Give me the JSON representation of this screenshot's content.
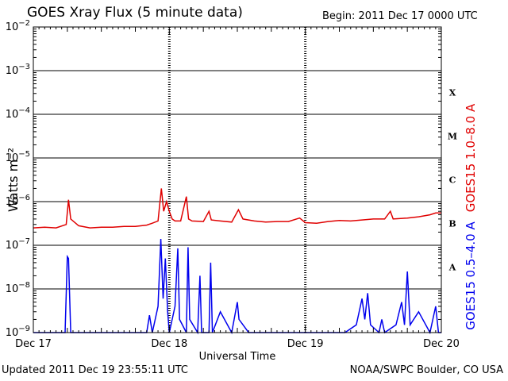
{
  "header": {
    "title": "GOES Xray Flux (5 minute data)",
    "begin": "Begin:  2011 Dec 17 0000 UTC"
  },
  "footer": {
    "updated": "Updated 2011 Dec 19 23:55:11 UTC",
    "credit": "NOAA/SWPC Boulder, CO USA"
  },
  "chart_data": {
    "type": "line",
    "title": "GOES Xray Flux (5 minute data)",
    "xlabel": "Universal Time",
    "ylabel": "Watts m⁻²",
    "yscale": "log",
    "ylim": [
      1e-09,
      0.01
    ],
    "xlim_hours": [
      0,
      72
    ],
    "x_tick_labels": [
      "Dec 17",
      "Dec 18",
      "Dec 19",
      "Dec 20"
    ],
    "x_tick_hours": [
      0,
      24,
      48,
      72
    ],
    "y_tick_values": [
      1e-09,
      1e-08,
      1e-07,
      1e-06,
      1e-05,
      0.0001,
      0.001,
      0.01
    ],
    "flare_classes": [
      {
        "label": "X",
        "logmid": -3.5
      },
      {
        "label": "M",
        "logmid": -4.5
      },
      {
        "label": "C",
        "logmid": -5.5
      },
      {
        "label": "B",
        "logmid": -6.5
      },
      {
        "label": "A",
        "logmid": -7.5
      }
    ],
    "grid": true,
    "series": [
      {
        "name": "GOES15 1.0–8.0 A",
        "color": "#e00000",
        "points": [
          [
            0,
            2.5e-07
          ],
          [
            2,
            2.6e-07
          ],
          [
            4,
            2.5e-07
          ],
          [
            5.8,
            3e-07
          ],
          [
            6.2,
            1.1e-06
          ],
          [
            6.6,
            4e-07
          ],
          [
            8,
            2.8e-07
          ],
          [
            10,
            2.5e-07
          ],
          [
            12,
            2.6e-07
          ],
          [
            14,
            2.6e-07
          ],
          [
            16,
            2.7e-07
          ],
          [
            18,
            2.7e-07
          ],
          [
            20,
            2.9e-07
          ],
          [
            21,
            3.2e-07
          ],
          [
            22,
            3.6e-07
          ],
          [
            22.6,
            2e-06
          ],
          [
            23.0,
            6e-07
          ],
          [
            23.5,
            1e-06
          ],
          [
            24,
            6e-07
          ],
          [
            24.5,
            4e-07
          ],
          [
            25,
            3.6e-07
          ],
          [
            26,
            3.6e-07
          ],
          [
            27,
            1.3e-06
          ],
          [
            27.4,
            4e-07
          ],
          [
            28,
            3.6e-07
          ],
          [
            30,
            3.5e-07
          ],
          [
            31,
            6e-07
          ],
          [
            31.4,
            3.8e-07
          ],
          [
            33,
            3.6e-07
          ],
          [
            35,
            3.4e-07
          ],
          [
            36.2,
            6.5e-07
          ],
          [
            37,
            4e-07
          ],
          [
            39,
            3.6e-07
          ],
          [
            41,
            3.4e-07
          ],
          [
            43,
            3.5e-07
          ],
          [
            45,
            3.5e-07
          ],
          [
            47,
            4.2e-07
          ],
          [
            48,
            3.3e-07
          ],
          [
            50,
            3.2e-07
          ],
          [
            52,
            3.5e-07
          ],
          [
            54,
            3.7e-07
          ],
          [
            56,
            3.6e-07
          ],
          [
            58,
            3.8e-07
          ],
          [
            60,
            4e-07
          ],
          [
            62,
            4e-07
          ],
          [
            63,
            6e-07
          ],
          [
            63.5,
            4e-07
          ],
          [
            66,
            4.2e-07
          ],
          [
            68,
            4.5e-07
          ],
          [
            70,
            5e-07
          ],
          [
            71,
            5.5e-07
          ],
          [
            72,
            5.5e-07
          ]
        ]
      },
      {
        "name": "GOES15 0.5–4.0 A",
        "color": "#0000ee",
        "points": [
          [
            0,
            1e-09
          ],
          [
            5.6,
            1e-09
          ],
          [
            6.0,
            5.5e-08
          ],
          [
            6.2,
            5e-08
          ],
          [
            6.6,
            1e-09
          ],
          [
            12,
            1e-09
          ],
          [
            20,
            1e-09
          ],
          [
            20.5,
            2.5e-09
          ],
          [
            21,
            1e-09
          ],
          [
            22,
            4e-09
          ],
          [
            22.5,
            1.4e-07
          ],
          [
            22.9,
            6e-09
          ],
          [
            23.3,
            5e-08
          ],
          [
            23.7,
            3e-09
          ],
          [
            24,
            1e-09
          ],
          [
            25,
            4e-09
          ],
          [
            25.5,
            8.5e-08
          ],
          [
            25.8,
            2e-09
          ],
          [
            27,
            1e-09
          ],
          [
            27.3,
            9e-08
          ],
          [
            27.6,
            2e-09
          ],
          [
            29,
            1e-09
          ],
          [
            29.4,
            2e-08
          ],
          [
            29.7,
            1e-09
          ],
          [
            31,
            1e-09
          ],
          [
            31.3,
            4e-08
          ],
          [
            31.6,
            1e-09
          ],
          [
            33,
            3e-09
          ],
          [
            35,
            1e-09
          ],
          [
            36,
            5e-09
          ],
          [
            36.3,
            2e-09
          ],
          [
            38,
            1e-09
          ],
          [
            42,
            1e-09
          ],
          [
            48,
            1e-09
          ],
          [
            55,
            1e-09
          ],
          [
            57,
            1.5e-09
          ],
          [
            58,
            6e-09
          ],
          [
            58.5,
            2e-09
          ],
          [
            59,
            8e-09
          ],
          [
            59.5,
            1.5e-09
          ],
          [
            61,
            1e-09
          ],
          [
            61.5,
            2e-09
          ],
          [
            62,
            1e-09
          ],
          [
            64,
            1.5e-09
          ],
          [
            65,
            5e-09
          ],
          [
            65.5,
            1.5e-09
          ],
          [
            66,
            2.5e-08
          ],
          [
            66.5,
            1.5e-09
          ],
          [
            68,
            3e-09
          ],
          [
            70,
            1e-09
          ],
          [
            71,
            4e-09
          ],
          [
            71.5,
            1e-09
          ],
          [
            72,
            1e-09
          ]
        ]
      }
    ]
  }
}
